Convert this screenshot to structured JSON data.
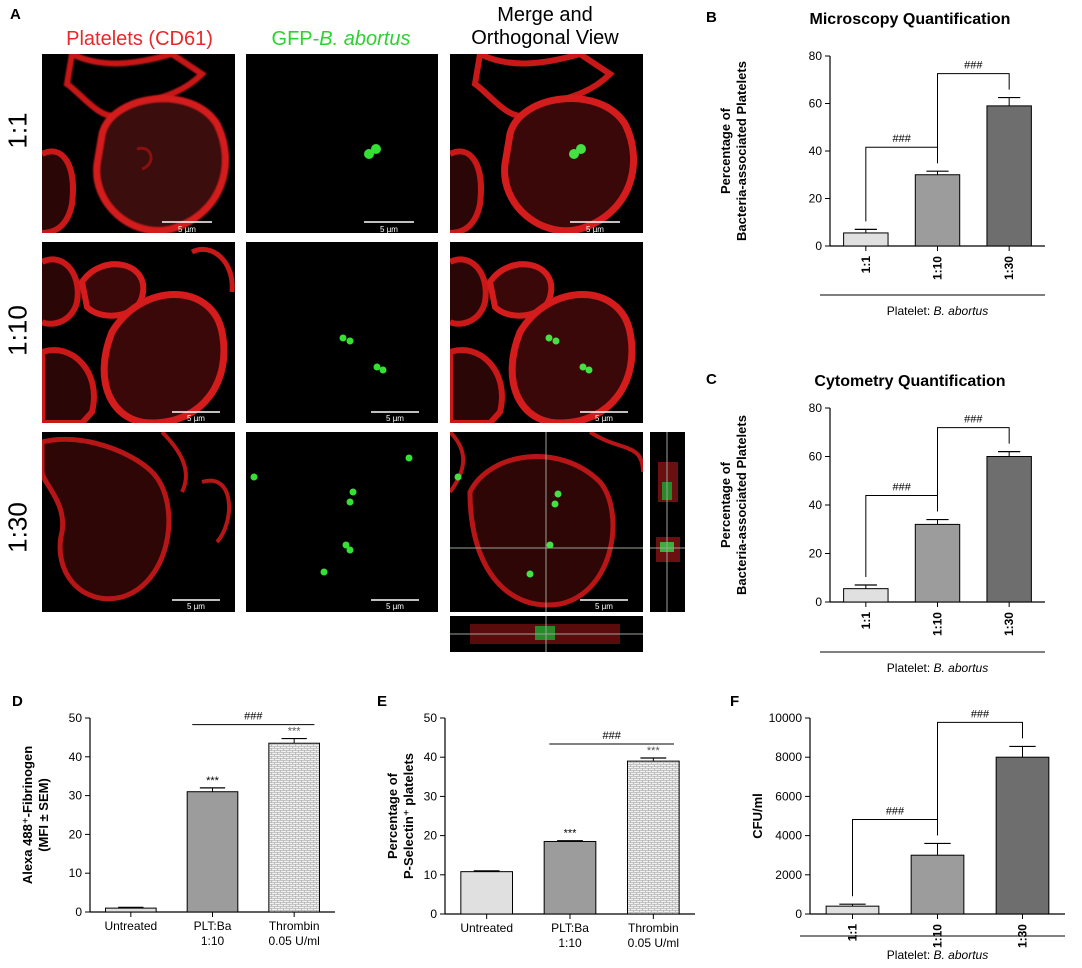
{
  "panel_a": {
    "letter": "A",
    "columns": [
      {
        "text": "Platelets (CD61)",
        "color": "#e8282a"
      },
      {
        "prefix": "GFP-",
        "italic": "B. abortus",
        "color": "#2fd12f"
      },
      {
        "line1": "Merge and",
        "line2": "Orthogonal View",
        "color": "#000000"
      }
    ],
    "rows": [
      "1:1",
      "1:10",
      "1:30"
    ],
    "scale_bars": [
      "5 µm",
      "5 µm",
      "5 µm",
      "5 µm",
      "5 µm",
      "5 µm",
      "5 µm",
      "5 µm",
      "5 µm"
    ]
  },
  "chart_data": [
    {
      "id": "B",
      "type": "bar",
      "title": "Microscopy Quantification",
      "ylabel_lines": [
        "Percentage of",
        "Bacteria-associated Platelets"
      ],
      "xlabel_plain": "Platelet: ",
      "xlabel_italic": "B. abortus",
      "categories": [
        "1:1",
        "1:10",
        "1:30"
      ],
      "values": [
        5.5,
        30,
        59
      ],
      "errors": [
        1.5,
        1.5,
        3.5
      ],
      "ylim": [
        0,
        80
      ],
      "yticks": [
        0,
        20,
        40,
        60,
        80
      ],
      "colors": [
        "#e0e0e0",
        "#9c9c9c",
        "#6e6e6e"
      ],
      "annotations": [
        {
          "text": "###",
          "from": 0,
          "to": 1
        },
        {
          "text": "###",
          "from": 1,
          "to": 2
        }
      ]
    },
    {
      "id": "C",
      "type": "bar",
      "title": "Cytometry Quantification",
      "ylabel_lines": [
        "Percentage of",
        "Bacteria-associated Platelets"
      ],
      "xlabel_plain": "Platelet: ",
      "xlabel_italic": "B. abortus",
      "categories": [
        "1:1",
        "1:10",
        "1:30"
      ],
      "values": [
        5.5,
        32,
        60
      ],
      "errors": [
        1.5,
        2,
        2
      ],
      "ylim": [
        0,
        80
      ],
      "yticks": [
        0,
        20,
        40,
        60,
        80
      ],
      "colors": [
        "#e0e0e0",
        "#9c9c9c",
        "#6e6e6e"
      ],
      "annotations": [
        {
          "text": "###",
          "from": 0,
          "to": 1
        },
        {
          "text": "###",
          "from": 1,
          "to": 2
        }
      ]
    },
    {
      "id": "D",
      "type": "bar",
      "ylabel_lines": [
        "Alexa 488⁺-Fibrinogen",
        "(MFI ± SEM)"
      ],
      "categories": [
        [
          "Untreated"
        ],
        [
          "PLT:Ba",
          "1:10"
        ],
        [
          "Thrombin",
          "0.05 U/ml"
        ]
      ],
      "values": [
        1,
        31,
        43.5
      ],
      "errors": [
        0.2,
        1,
        1.2
      ],
      "ylim": [
        0,
        50
      ],
      "yticks": [
        0,
        10,
        20,
        30,
        40,
        50
      ],
      "colors": [
        "#e0e0e0",
        "#9c9c9c",
        "brick"
      ],
      "stars": [
        "",
        "***",
        "***"
      ],
      "annotations": [
        {
          "text": "###",
          "from": 1,
          "to": 2,
          "flat": true
        }
      ]
    },
    {
      "id": "E",
      "type": "bar",
      "ylabel_lines": [
        "Percentage of",
        "P-Selectin⁺ platelets"
      ],
      "categories": [
        [
          "Untreated"
        ],
        [
          "PLT:Ba",
          "1:10"
        ],
        [
          "Thrombin",
          "0.05 U/ml"
        ]
      ],
      "values": [
        10.8,
        18.5,
        39
      ],
      "errors": [
        0.2,
        0.2,
        0.8
      ],
      "ylim": [
        0,
        50
      ],
      "yticks": [
        0,
        10,
        20,
        30,
        40,
        50
      ],
      "colors": [
        "#e0e0e0",
        "#9c9c9c",
        "brick"
      ],
      "stars": [
        "",
        "***",
        "***"
      ],
      "annotations": [
        {
          "text": "###",
          "from": 1,
          "to": 2,
          "flat": true
        }
      ]
    },
    {
      "id": "F",
      "type": "bar",
      "ylabel_lines": [
        "CFU/ml"
      ],
      "xlabel_plain": "Platelet: ",
      "xlabel_italic": "B. abortus",
      "categories": [
        "1:1",
        "1:10",
        "1:30"
      ],
      "values": [
        400,
        3000,
        8000
      ],
      "errors": [
        100,
        600,
        550
      ],
      "ylim": [
        0,
        10000
      ],
      "yticks": [
        0,
        2000,
        4000,
        6000,
        8000,
        10000
      ],
      "colors": [
        "#e0e0e0",
        "#9c9c9c",
        "#6e6e6e"
      ],
      "annotations": [
        {
          "text": "###",
          "from": 0,
          "to": 1
        },
        {
          "text": "###",
          "from": 1,
          "to": 2
        }
      ]
    }
  ]
}
